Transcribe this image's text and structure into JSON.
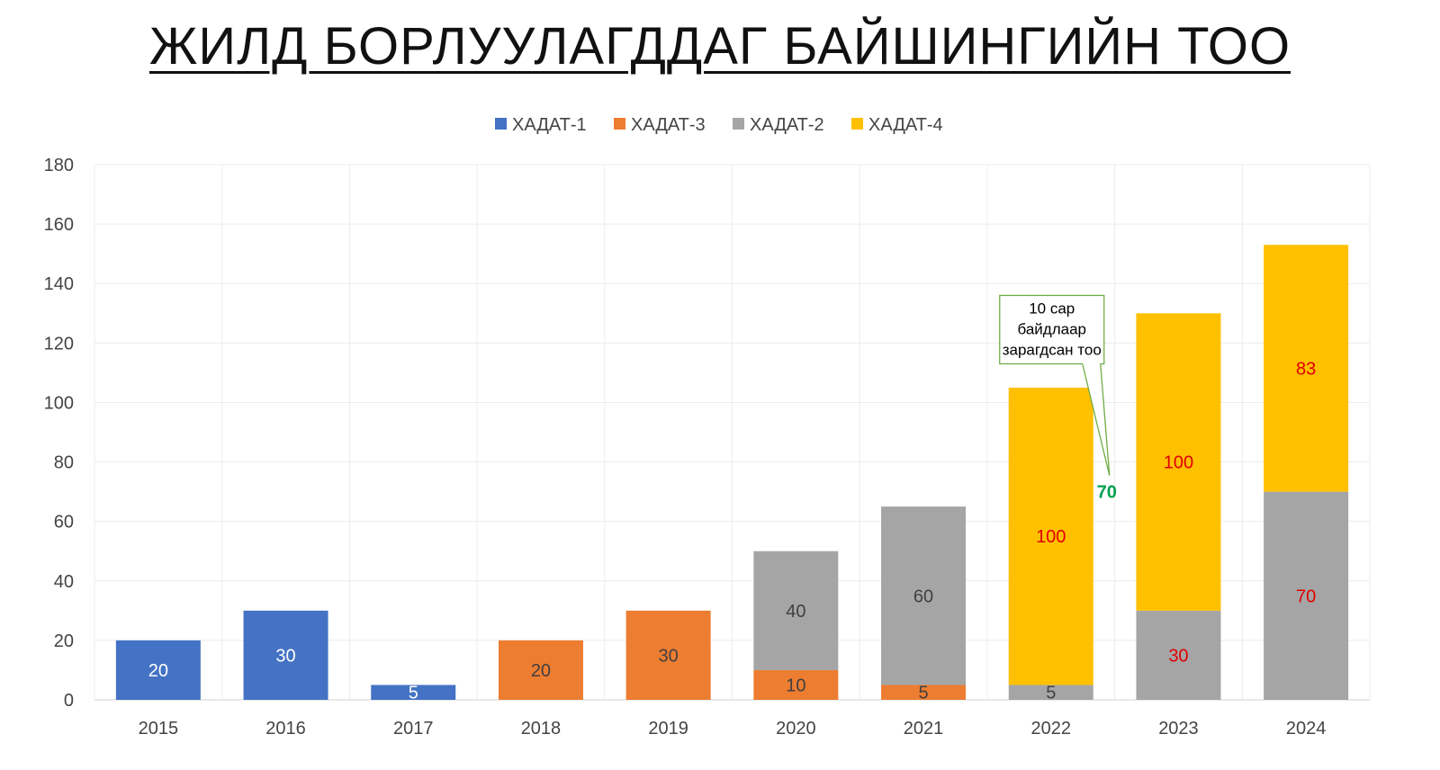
{
  "chart_data": {
    "type": "bar",
    "stacked": true,
    "title": "ЖИЛД БОРЛУУЛАГДДАГ БАЙШИНГИЙН ТОО",
    "xlabel": "",
    "ylabel": "",
    "ylim": [
      0,
      180
    ],
    "y_ticks": [
      0,
      20,
      40,
      60,
      80,
      100,
      120,
      140,
      160,
      180
    ],
    "grid": true,
    "legend_position": "top",
    "categories": [
      "2015",
      "2016",
      "2017",
      "2018",
      "2019",
      "2020",
      "2021",
      "2022",
      "2023",
      "2024"
    ],
    "series": [
      {
        "name": "ХАДАТ-1",
        "color": "#4472C4",
        "values": [
          20,
          30,
          5,
          0,
          0,
          0,
          0,
          0,
          0,
          0
        ]
      },
      {
        "name": "ХАДАТ-3",
        "color": "#ED7D31",
        "values": [
          0,
          0,
          0,
          20,
          30,
          10,
          5,
          0,
          0,
          0
        ]
      },
      {
        "name": "ХАДАТ-2",
        "color": "#A5A5A5",
        "values": [
          0,
          0,
          0,
          0,
          0,
          40,
          60,
          5,
          30,
          70
        ]
      },
      {
        "name": "ХАДАТ-4",
        "color": "#FFC000",
        "values": [
          0,
          0,
          0,
          0,
          0,
          0,
          0,
          100,
          100,
          83
        ]
      }
    ],
    "data_label_colors": {
      "2015": {
        "ХАДАТ-1": "#ffffff"
      },
      "2016": {
        "ХАДАТ-1": "#ffffff"
      },
      "2017": {
        "ХАДАТ-1": "#ffffff"
      },
      "2018": {
        "ХАДАТ-3": "#404040"
      },
      "2019": {
        "ХАДАТ-3": "#404040"
      },
      "2020": {
        "ХАДАТ-3": "#404040",
        "ХАДАТ-2": "#404040"
      },
      "2021": {
        "ХАДАТ-3": "#404040",
        "ХАДАТ-2": "#404040"
      },
      "2022": {
        "ХАДАТ-2": "#404040",
        "ХАДАТ-4": "#E00000"
      },
      "2023": {
        "ХАДАТ-2": "#E00000",
        "ХАДАТ-4": "#E00000"
      },
      "2024": {
        "ХАДАТ-2": "#E00000",
        "ХАДАТ-4": "#E00000"
      }
    },
    "annotations": [
      {
        "category": "2022",
        "value": "70",
        "color": "#00A050",
        "text": "10 сар байдлаар зарагдсан тоо"
      }
    ]
  },
  "annotation_lines": [
    "10 сар",
    "байдлаар",
    "зарагдсан тоо"
  ]
}
